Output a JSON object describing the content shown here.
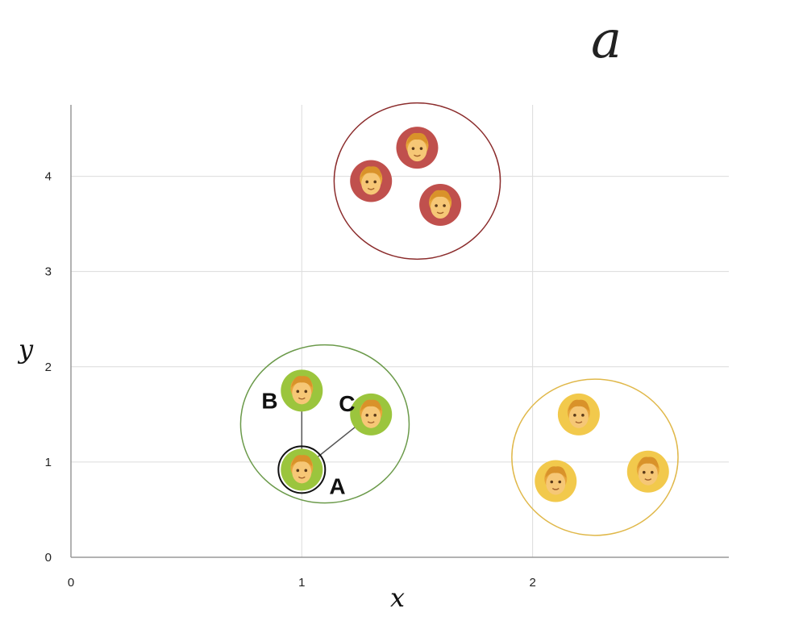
{
  "corner_label": "a",
  "colors": {
    "grid": "#dcdcdc",
    "axis": "#999999",
    "red_cluster": "#c0504d",
    "red_ring": "#8b2c2c",
    "green_cluster": "#9bc53d",
    "green_ring": "#6b9a4a",
    "yellow_cluster": "#f2c94c",
    "yellow_ring": "#e0b84a"
  },
  "icon": "person-emoji-icon",
  "chart_data": {
    "type": "scatter",
    "xlabel": "x",
    "ylabel": "y",
    "xlim": [
      0,
      2.85
    ],
    "ylim": [
      0,
      4.75
    ],
    "xticks": [
      0,
      1,
      2
    ],
    "yticks": [
      0,
      1,
      2,
      3,
      4
    ],
    "grid": true,
    "series": [
      {
        "color": "#c0504d",
        "points": [
          {
            "x": 1.5,
            "y": 4.3
          },
          {
            "x": 1.3,
            "y": 3.95
          },
          {
            "x": 1.6,
            "y": 3.7
          }
        ],
        "enclosure": {
          "cx": 1.5,
          "cy": 3.95,
          "rx": 0.36,
          "ry": 0.82,
          "color": "#8b2c2c"
        }
      },
      {
        "color": "#9bc53d",
        "points": [
          {
            "x": 1.0,
            "y": 1.75,
            "label": "B"
          },
          {
            "x": 1.3,
            "y": 1.5,
            "label": "C"
          },
          {
            "x": 1.0,
            "y": 0.92,
            "label": "A",
            "highlight": true
          }
        ],
        "enclosure": {
          "cx": 1.1,
          "cy": 1.4,
          "rx": 0.365,
          "ry": 0.83,
          "color": "#6b9a4a"
        }
      },
      {
        "color": "#f2c94c",
        "points": [
          {
            "x": 2.2,
            "y": 1.5
          },
          {
            "x": 2.1,
            "y": 0.8
          },
          {
            "x": 2.5,
            "y": 0.9
          }
        ],
        "enclosure": {
          "cx": 2.27,
          "cy": 1.05,
          "rx": 0.36,
          "ry": 0.82,
          "color": "#e0b84a"
        }
      }
    ],
    "connections": [
      [
        "A",
        "B"
      ],
      [
        "A",
        "C"
      ]
    ],
    "annotations": [
      "A",
      "B",
      "C"
    ]
  }
}
